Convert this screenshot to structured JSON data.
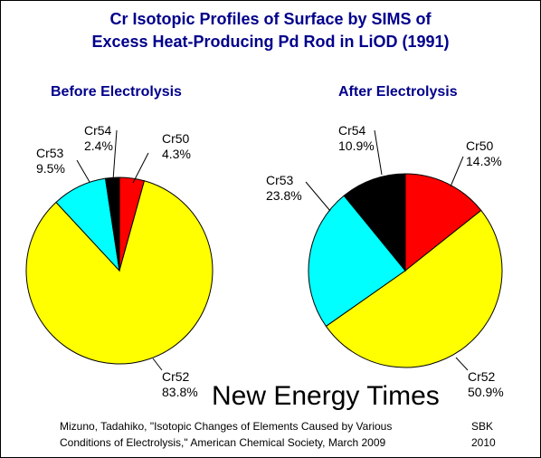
{
  "title_line1": "Cr Isotopic Profiles of Surface by SIMS of",
  "title_line2": "Excess Heat-Producing Pd Rod in LiOD (1991)",
  "watermark": "New Energy Times",
  "citation_line1": "Mizuno, Tadahiko, \"Isotopic Changes of Elements Caused by Various",
  "citation_line2": "Conditions of Electrolysis,\" American Chemical Society, March 2009",
  "credit_line1": "SBK",
  "credit_line2": "2010",
  "chart_data": [
    {
      "type": "pie",
      "title": "Before Electrolysis",
      "slices": [
        {
          "name": "Cr50",
          "value": 4.3,
          "label": "4.3%",
          "color": "#ff0000"
        },
        {
          "name": "Cr52",
          "value": 83.8,
          "label": "83.8%",
          "color": "#ffff00"
        },
        {
          "name": "Cr53",
          "value": 9.5,
          "label": "9.5%",
          "color": "#00ffff"
        },
        {
          "name": "Cr54",
          "value": 2.4,
          "label": "2.4%",
          "color": "#000000"
        }
      ]
    },
    {
      "type": "pie",
      "title": "After Electrolysis",
      "slices": [
        {
          "name": "Cr50",
          "value": 14.3,
          "label": "14.3%",
          "color": "#ff0000"
        },
        {
          "name": "Cr52",
          "value": 50.9,
          "label": "50.9%",
          "color": "#ffff00"
        },
        {
          "name": "Cr53",
          "value": 23.8,
          "label": "23.8%",
          "color": "#00ffff"
        },
        {
          "name": "Cr54",
          "value": 10.9,
          "label": "10.9%",
          "color": "#000000"
        }
      ]
    }
  ]
}
